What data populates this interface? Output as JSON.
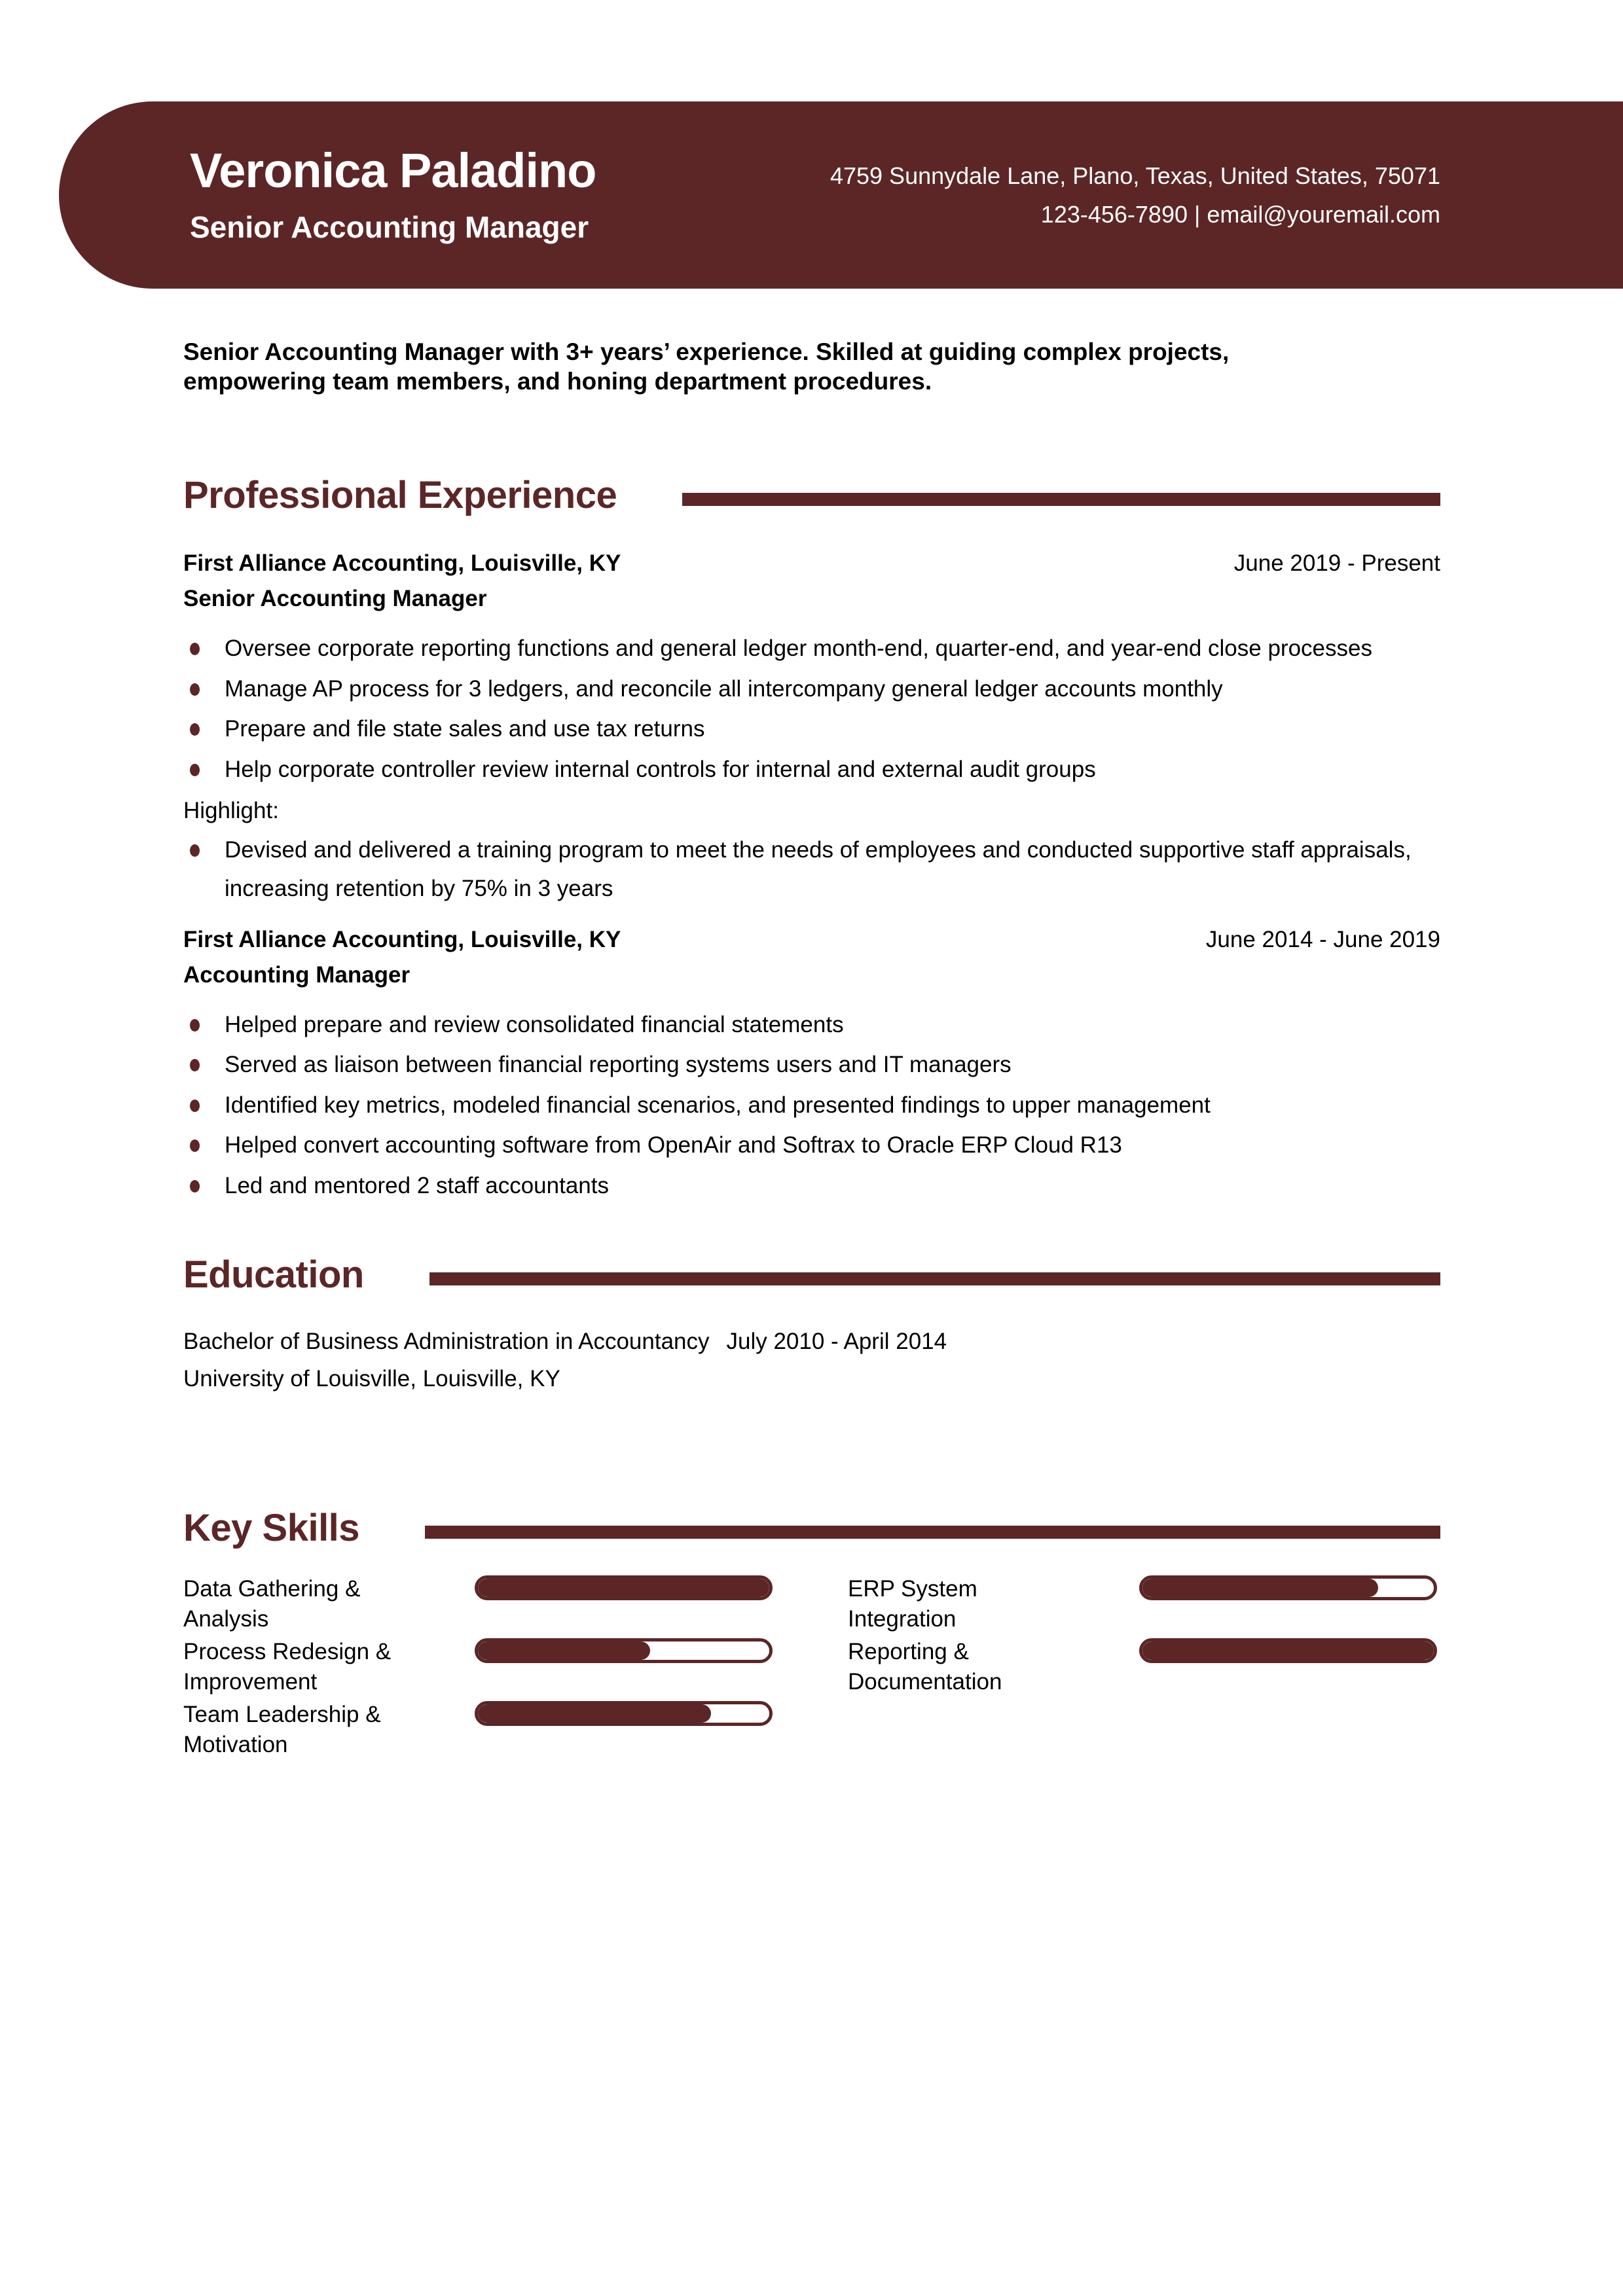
{
  "colors": {
    "accent": "#5C2626",
    "text": "#000000",
    "header_text": "#FFFFFF",
    "background": "#FFFFFF"
  },
  "header": {
    "name": "Veronica Paladino",
    "title": "Senior Accounting Manager",
    "address": "4759 Sunnydale Lane, Plano, Texas, United States, 75071",
    "contact_line": "123-456-7890 | email@youremail.com"
  },
  "summary": "Senior Accounting Manager with 3+ years’ experience. Skilled at guiding complex projects, empowering team members, and honing department procedures.",
  "sections": {
    "experience": {
      "heading": "Professional Experience",
      "jobs": [
        {
          "company": "First Alliance Accounting, Louisville, KY",
          "dates": "June 2019 - Present",
          "role": "Senior Accounting Manager",
          "bullets": [
            "Oversee corporate reporting functions and general ledger month-end, quarter-end, and year-end close processes",
            "Manage AP process for 3 ledgers, and reconcile all intercompany general ledger accounts monthly",
            "Prepare and file state sales and use tax returns",
            "Help corporate controller review internal controls for internal and external audit groups"
          ],
          "highlight_label": "Highlight:",
          "highlight_bullet": "Devised and delivered a training program to meet the needs of employees and conducted supportive staff appraisals, increasing retention by 75% in 3 years"
        },
        {
          "company": "First Alliance Accounting, Louisville, KY",
          "dates": "June 2014 - June 2019",
          "role": "Accounting Manager",
          "bullets": [
            "Helped prepare and review consolidated financial statements",
            "Served as liaison between financial reporting systems users and IT managers",
            "Identified key metrics, modeled financial scenarios, and presented findings to upper management",
            "Helped convert accounting software from OpenAir and Softrax to Oracle ERP Cloud R13",
            "Led and mentored 2 staff accountants"
          ]
        }
      ]
    },
    "education": {
      "heading": "Education",
      "degree": "Bachelor of Business Administration in Accountancy",
      "dates": "July 2010 - April 2014",
      "school": "University of Louisville, Louisville, KY"
    },
    "skills": {
      "heading": "Key Skills",
      "items": [
        {
          "label": "Data Gathering & Analysis",
          "level": 100
        },
        {
          "label": "Process Redesign & Improvement",
          "level": 59
        },
        {
          "label": "Team Leadership & Motivation",
          "level": 80
        },
        {
          "label": "ERP System Integration",
          "level": 81
        },
        {
          "label": "Reporting & Documentation",
          "level": 100
        }
      ]
    }
  }
}
